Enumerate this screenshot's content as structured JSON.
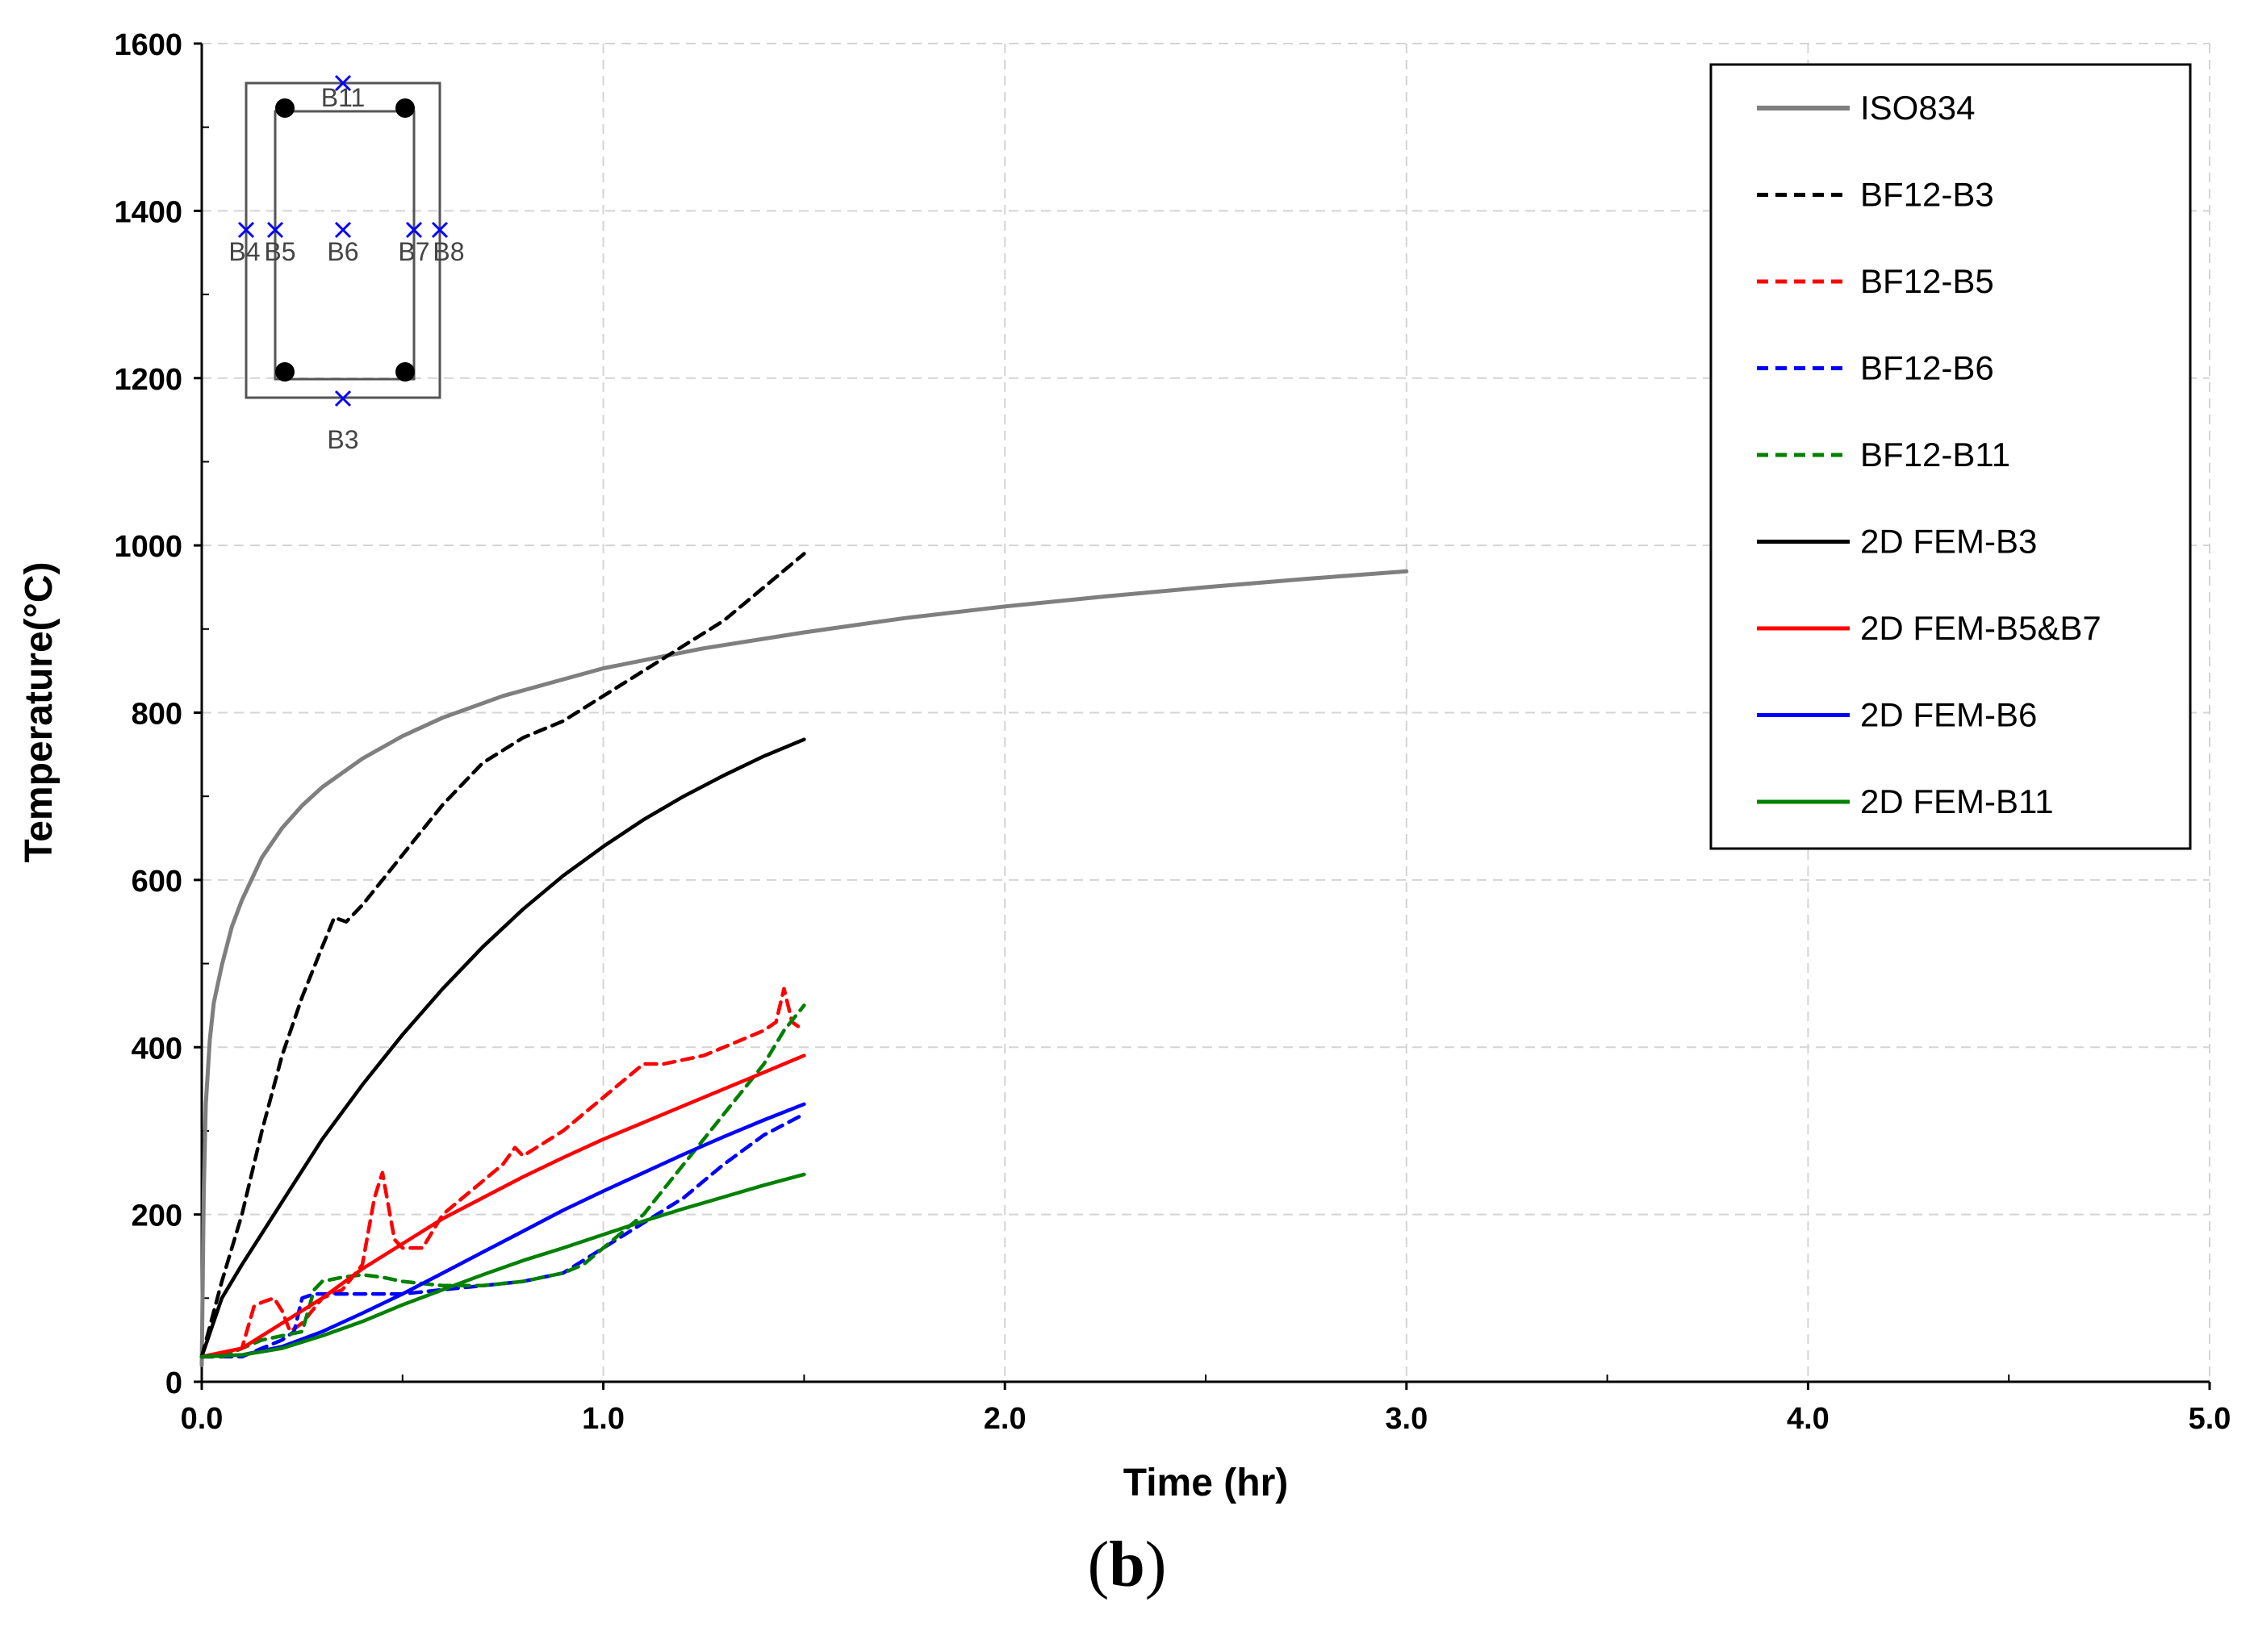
{
  "chart_data": {
    "type": "line",
    "title": "",
    "xlabel": "Time (hr)",
    "ylabel": "Temperature(°C)",
    "xlim": [
      0,
      5
    ],
    "ylim": [
      0,
      1600
    ],
    "x_ticks": [
      0,
      1,
      2,
      3,
      4,
      5
    ],
    "x_tick_labels": [
      "0.0",
      "1.0",
      "2.0",
      "3.0",
      "4.0",
      "5.0"
    ],
    "y_ticks": [
      0,
      200,
      400,
      600,
      800,
      1000,
      1200,
      1400,
      1600
    ],
    "y_tick_labels": [
      "0",
      "200",
      "400",
      "600",
      "800",
      "1000",
      "1200",
      "1400",
      "1600"
    ],
    "grid": true,
    "legend_position": "top-right",
    "series": [
      {
        "name": "ISO834",
        "color": "#7f7f7f",
        "dash": "solid",
        "x": [
          0,
          0.005,
          0.01,
          0.02,
          0.03,
          0.05,
          0.075,
          0.1,
          0.15,
          0.2,
          0.25,
          0.3,
          0.4,
          0.5,
          0.6,
          0.75,
          1.0,
          1.25,
          1.5,
          1.75,
          2.0,
          2.25,
          2.5,
          2.75,
          3.0
        ],
        "y": [
          20,
          228,
          332,
          409,
          453,
          498,
          544,
          576,
          627,
          662,
          689,
          711,
          745,
          772,
          794,
          820,
          853,
          877,
          896,
          913,
          927,
          939,
          950,
          960,
          969
        ]
      },
      {
        "name": "BF12-B3",
        "color": "#000000",
        "dash": "dashed",
        "x": [
          0,
          0.05,
          0.1,
          0.15,
          0.2,
          0.25,
          0.3,
          0.33,
          0.36,
          0.4,
          0.45,
          0.5,
          0.55,
          0.6,
          0.7,
          0.8,
          0.9,
          1.0,
          1.1,
          1.2,
          1.3,
          1.4,
          1.5
        ],
        "y": [
          30,
          120,
          200,
          300,
          390,
          460,
          520,
          555,
          550,
          570,
          600,
          630,
          660,
          690,
          740,
          770,
          790,
          820,
          850,
          880,
          910,
          950,
          990
        ]
      },
      {
        "name": "BF12-B5",
        "color": "#ff0000",
        "dash": "dashed",
        "x": [
          0,
          0.05,
          0.1,
          0.13,
          0.15,
          0.18,
          0.2,
          0.22,
          0.25,
          0.3,
          0.35,
          0.4,
          0.43,
          0.45,
          0.48,
          0.5,
          0.55,
          0.6,
          0.65,
          0.7,
          0.75,
          0.78,
          0.8,
          0.85,
          0.9,
          0.95,
          1.0,
          1.05,
          1.1,
          1.15,
          1.2,
          1.25,
          1.3,
          1.35,
          1.4,
          1.43,
          1.45,
          1.47,
          1.5
        ],
        "y": [
          30,
          30,
          40,
          90,
          95,
          100,
          85,
          60,
          70,
          100,
          110,
          140,
          220,
          250,
          170,
          160,
          160,
          200,
          220,
          240,
          260,
          280,
          270,
          285,
          300,
          320,
          340,
          360,
          380,
          380,
          385,
          390,
          400,
          410,
          420,
          430,
          470,
          430,
          420
        ]
      },
      {
        "name": "BF12-B6",
        "color": "#0000ff",
        "dash": "dashed",
        "x": [
          0,
          0.05,
          0.1,
          0.15,
          0.2,
          0.23,
          0.25,
          0.28,
          0.3,
          0.4,
          0.5,
          0.6,
          0.7,
          0.8,
          0.9,
          1.0,
          1.1,
          1.2,
          1.3,
          1.4,
          1.5
        ],
        "y": [
          30,
          30,
          30,
          40,
          50,
          60,
          100,
          105,
          105,
          105,
          105,
          110,
          115,
          120,
          130,
          160,
          190,
          220,
          260,
          295,
          320
        ]
      },
      {
        "name": "BF12-B11",
        "color": "#008000",
        "dash": "dashed",
        "x": [
          0,
          0.05,
          0.1,
          0.15,
          0.2,
          0.25,
          0.28,
          0.3,
          0.35,
          0.4,
          0.45,
          0.5,
          0.6,
          0.7,
          0.8,
          0.9,
          0.95,
          1.0,
          1.05,
          1.1,
          1.15,
          1.2,
          1.25,
          1.3,
          1.35,
          1.4,
          1.45,
          1.5
        ],
        "y": [
          30,
          30,
          40,
          50,
          55,
          60,
          110,
          120,
          125,
          128,
          125,
          120,
          115,
          115,
          120,
          130,
          140,
          160,
          180,
          200,
          230,
          260,
          290,
          320,
          350,
          380,
          420,
          450
        ]
      },
      {
        "name": "2D FEM-B3",
        "color": "#000000",
        "dash": "solid",
        "x": [
          0,
          0.05,
          0.1,
          0.2,
          0.3,
          0.4,
          0.5,
          0.6,
          0.7,
          0.8,
          0.9,
          1.0,
          1.1,
          1.2,
          1.3,
          1.4,
          1.5
        ],
        "y": [
          30,
          100,
          140,
          215,
          290,
          355,
          415,
          470,
          520,
          565,
          605,
          640,
          672,
          700,
          725,
          748,
          768
        ]
      },
      {
        "name": "2D FEM-B5&B7",
        "color": "#ff0000",
        "dash": "solid",
        "x": [
          0,
          0.1,
          0.2,
          0.3,
          0.4,
          0.5,
          0.6,
          0.7,
          0.8,
          0.9,
          1.0,
          1.1,
          1.2,
          1.3,
          1.4,
          1.5
        ],
        "y": [
          30,
          40,
          70,
          100,
          135,
          165,
          195,
          220,
          245,
          268,
          290,
          310,
          330,
          350,
          370,
          390
        ]
      },
      {
        "name": "2D FEM-B6",
        "color": "#0000ff",
        "dash": "solid",
        "x": [
          0,
          0.1,
          0.2,
          0.3,
          0.4,
          0.5,
          0.6,
          0.7,
          0.8,
          0.9,
          1.0,
          1.1,
          1.2,
          1.3,
          1.4,
          1.5
        ],
        "y": [
          30,
          32,
          42,
          60,
          82,
          105,
          130,
          155,
          180,
          205,
          228,
          250,
          272,
          293,
          313,
          332
        ]
      },
      {
        "name": "2D FEM-B11",
        "color": "#008000",
        "dash": "solid",
        "x": [
          0,
          0.1,
          0.2,
          0.3,
          0.4,
          0.5,
          0.6,
          0.7,
          0.8,
          0.9,
          1.0,
          1.1,
          1.2,
          1.3,
          1.4,
          1.5
        ],
        "y": [
          30,
          32,
          40,
          55,
          72,
          92,
          110,
          128,
          145,
          160,
          176,
          192,
          207,
          221,
          235,
          248
        ]
      }
    ]
  },
  "inset": {
    "labels": [
      "B11",
      "B4",
      "B5",
      "B6",
      "B7",
      "B8",
      "B3"
    ]
  },
  "panel_label": "(b)",
  "panel_label_text": "b"
}
